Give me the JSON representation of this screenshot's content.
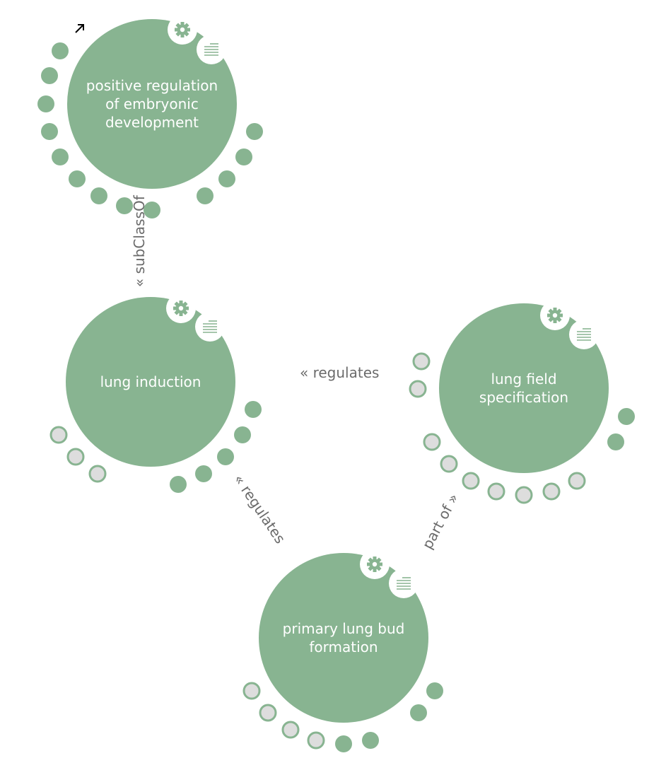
{
  "colors": {
    "node_fill": "#88b491",
    "node_text": "#ffffff",
    "edge_label": "#6b6b6b",
    "port_empty_fill": "#dddddd",
    "icon_bg": "#ffffff"
  },
  "nodes": [
    {
      "id": "n1",
      "lines": [
        "positive regulation",
        "of embryonic",
        "development"
      ]
    },
    {
      "id": "n2",
      "lines": [
        "lung induction"
      ]
    },
    {
      "id": "n3",
      "lines": [
        "lung field",
        "specification"
      ]
    },
    {
      "id": "n4",
      "lines": [
        "primary lung bud",
        "formation"
      ]
    }
  ],
  "edges": [
    {
      "id": "e1",
      "label": "« subClassOf"
    },
    {
      "id": "e2",
      "label": "« regulates"
    },
    {
      "id": "e3",
      "label": "« regulates"
    },
    {
      "id": "e4",
      "label": "part of »"
    }
  ],
  "icons": {
    "settings": "gear-icon",
    "details": "list-icon",
    "expand": "expand-arrow-icon"
  }
}
